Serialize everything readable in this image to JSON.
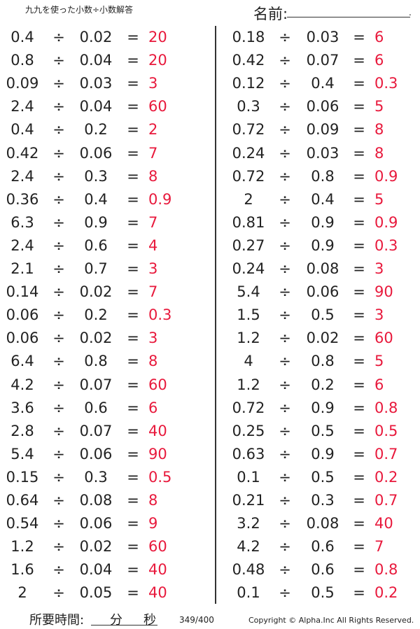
{
  "header": {
    "title": "九九を使った小数÷小数解答",
    "name_label": "名前:",
    "name_dot": "."
  },
  "operators": {
    "divide": "÷",
    "equals": "="
  },
  "colors": {
    "answer": "#e8193c",
    "text": "#222222"
  },
  "left_problems": [
    [
      "0.4",
      "0.02",
      "20"
    ],
    [
      "0.8",
      "0.04",
      "20"
    ],
    [
      "0.09",
      "0.03",
      "3"
    ],
    [
      "2.4",
      "0.04",
      "60"
    ],
    [
      "0.4",
      "0.2",
      "2"
    ],
    [
      "0.42",
      "0.06",
      "7"
    ],
    [
      "2.4",
      "0.3",
      "8"
    ],
    [
      "0.36",
      "0.4",
      "0.9"
    ],
    [
      "6.3",
      "0.9",
      "7"
    ],
    [
      "2.4",
      "0.6",
      "4"
    ],
    [
      "2.1",
      "0.7",
      "3"
    ],
    [
      "0.14",
      "0.02",
      "7"
    ],
    [
      "0.06",
      "0.2",
      "0.3"
    ],
    [
      "0.06",
      "0.02",
      "3"
    ],
    [
      "6.4",
      "0.8",
      "8"
    ],
    [
      "4.2",
      "0.07",
      "60"
    ],
    [
      "3.6",
      "0.6",
      "6"
    ],
    [
      "2.8",
      "0.07",
      "40"
    ],
    [
      "5.4",
      "0.06",
      "90"
    ],
    [
      "0.15",
      "0.3",
      "0.5"
    ],
    [
      "0.64",
      "0.08",
      "8"
    ],
    [
      "0.54",
      "0.06",
      "9"
    ],
    [
      "1.2",
      "0.02",
      "60"
    ],
    [
      "1.6",
      "0.04",
      "40"
    ],
    [
      "2",
      "0.05",
      "40"
    ]
  ],
  "right_problems": [
    [
      "0.18",
      "0.03",
      "6"
    ],
    [
      "0.42",
      "0.07",
      "6"
    ],
    [
      "0.12",
      "0.4",
      "0.3"
    ],
    [
      "0.3",
      "0.06",
      "5"
    ],
    [
      "0.72",
      "0.09",
      "8"
    ],
    [
      "0.24",
      "0.03",
      "8"
    ],
    [
      "0.72",
      "0.8",
      "0.9"
    ],
    [
      "2",
      "0.4",
      "5"
    ],
    [
      "0.81",
      "0.9",
      "0.9"
    ],
    [
      "0.27",
      "0.9",
      "0.3"
    ],
    [
      "0.24",
      "0.08",
      "3"
    ],
    [
      "5.4",
      "0.06",
      "90"
    ],
    [
      "1.5",
      "0.5",
      "3"
    ],
    [
      "1.2",
      "0.02",
      "60"
    ],
    [
      "4",
      "0.8",
      "5"
    ],
    [
      "1.2",
      "0.2",
      "6"
    ],
    [
      "0.72",
      "0.9",
      "0.8"
    ],
    [
      "0.25",
      "0.5",
      "0.5"
    ],
    [
      "0.63",
      "0.9",
      "0.7"
    ],
    [
      "0.1",
      "0.5",
      "0.2"
    ],
    [
      "0.21",
      "0.3",
      "0.7"
    ],
    [
      "3.2",
      "0.08",
      "40"
    ],
    [
      "4.2",
      "0.6",
      "7"
    ],
    [
      "0.48",
      "0.6",
      "0.8"
    ],
    [
      "0.1",
      "0.5",
      "0.2"
    ]
  ],
  "footer": {
    "time_label": "所要時間:",
    "minutes": "分",
    "seconds": "秒",
    "page": "349/400",
    "copyright": "Copyright © Alpha.Inc All Rights Reserved."
  }
}
